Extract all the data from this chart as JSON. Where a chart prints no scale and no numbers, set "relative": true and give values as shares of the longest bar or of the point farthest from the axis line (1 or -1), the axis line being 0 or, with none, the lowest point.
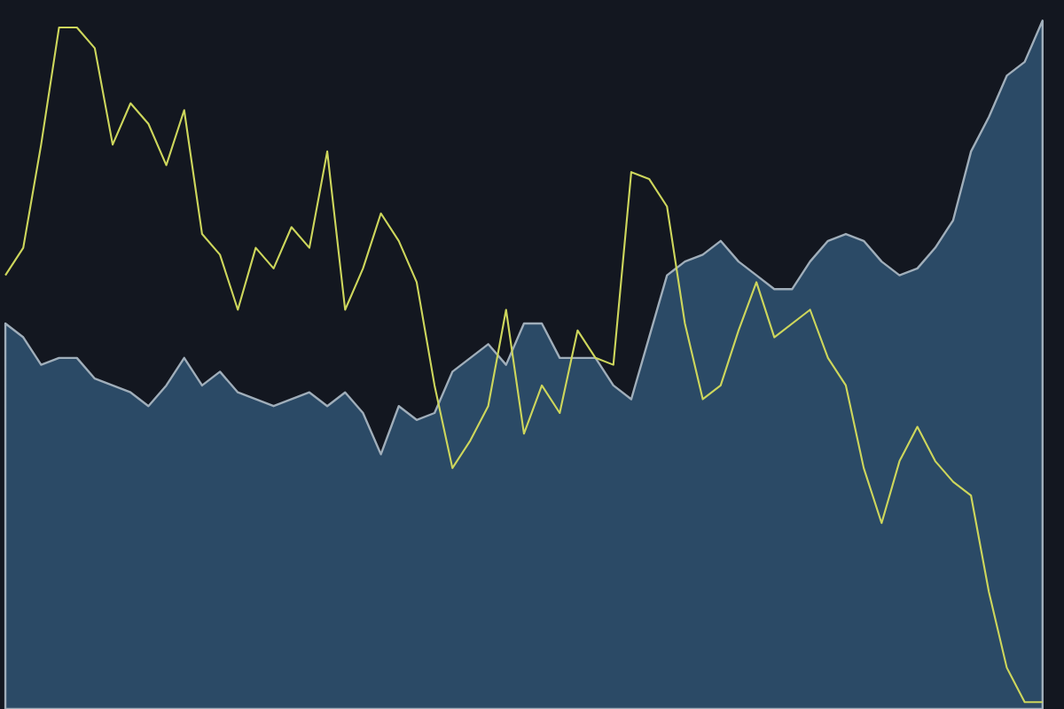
{
  "chart_data": {
    "type": "line",
    "relative": true,
    "categories": [
      null,
      null,
      null,
      null,
      null,
      null,
      null,
      null,
      null,
      null,
      null,
      null,
      null,
      null,
      null,
      null,
      null,
      null,
      null,
      null,
      null,
      null,
      null,
      null,
      null,
      null,
      null,
      null,
      null,
      null,
      null,
      null,
      null,
      null,
      null,
      null,
      null,
      null,
      null,
      null,
      null,
      null,
      null,
      null,
      null,
      null,
      null,
      null,
      null,
      null,
      null,
      null,
      null,
      null,
      null,
      null,
      null,
      null,
      null
    ],
    "series": [
      {
        "type": "area",
        "color": "#2b4a66",
        "values": [
          0.56,
          0.54,
          0.5,
          0.51,
          0.51,
          0.48,
          0.47,
          0.46,
          0.44,
          0.47,
          0.51,
          0.47,
          0.49,
          0.46,
          0.45,
          0.44,
          0.45,
          0.46,
          0.44,
          0.46,
          0.43,
          0.37,
          0.44,
          0.42,
          0.43,
          0.49,
          0.51,
          0.53,
          0.5,
          0.56,
          0.56,
          0.51,
          0.51,
          0.51,
          0.47,
          0.45,
          0.54,
          0.63,
          0.65,
          0.66,
          0.68,
          0.65,
          0.63,
          0.61,
          0.61,
          0.65,
          0.68,
          0.69,
          0.68,
          0.65,
          0.63,
          0.64,
          0.67,
          0.71,
          0.81,
          0.86,
          0.92,
          0.94,
          1.0
        ]
      },
      {
        "color": "#cdd65c",
        "values": [
          0.63,
          0.67,
          0.82,
          0.99,
          0.99,
          0.96,
          0.82,
          0.88,
          0.85,
          0.79,
          0.87,
          0.69,
          0.66,
          0.58,
          0.67,
          0.64,
          0.7,
          0.67,
          0.81,
          0.58,
          0.64,
          0.72,
          0.68,
          0.62,
          0.47,
          0.35,
          0.39,
          0.44,
          0.58,
          0.4,
          0.47,
          0.43,
          0.55,
          0.51,
          0.5,
          0.78,
          0.77,
          0.73,
          0.56,
          0.45,
          0.47,
          0.55,
          0.62,
          0.54,
          0.56,
          0.58,
          0.51,
          0.47,
          0.35,
          0.27,
          0.36,
          0.41,
          0.36,
          0.33,
          0.31,
          0.17,
          0.06,
          0.01,
          0.01
        ]
      }
    ]
  }
}
